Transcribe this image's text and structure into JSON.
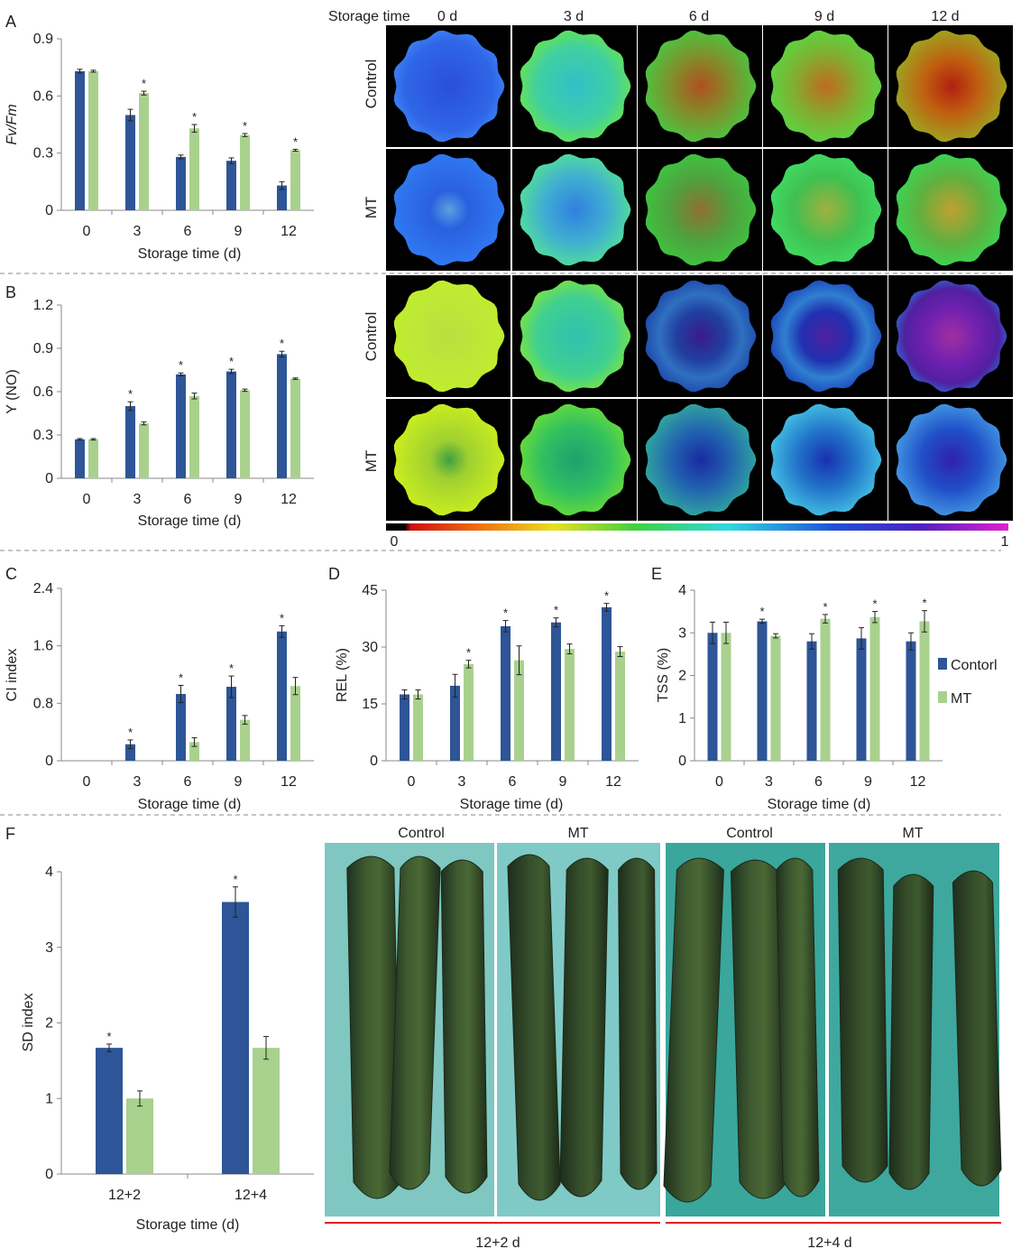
{
  "colors": {
    "control": "#2e5597",
    "mt": "#a9d18e",
    "axis": "#888888",
    "dash": "#888888",
    "red_line": "#e02020"
  },
  "legend": {
    "control": "Contorl",
    "mt": "MT"
  },
  "panels": {
    "A": {
      "label": "A",
      "ylabel": "Fv/Fm",
      "xlabel": "Storage time (d)"
    },
    "B": {
      "label": "B",
      "ylabel": "Y (NO)",
      "xlabel": "Storage time (d)"
    },
    "C": {
      "label": "C",
      "ylabel": "CI index",
      "xlabel": "Storage time (d)"
    },
    "D": {
      "label": "D",
      "ylabel": "REL (%)",
      "xlabel": "Storage time (d)"
    },
    "E": {
      "label": "E",
      "ylabel": "TSS (%)",
      "xlabel": "Storage time (d)"
    },
    "F": {
      "label": "F",
      "ylabel": "SD index",
      "xlabel": "Storage time (d)"
    }
  },
  "image_grid": {
    "header_label": "Storage time",
    "columns": [
      "0 d",
      "3 d",
      "6 d",
      "9 d",
      "12 d"
    ],
    "rows": [
      "Control",
      "MT",
      "Control",
      "MT"
    ],
    "colorbar": {
      "min": "0",
      "max": "1"
    }
  },
  "photos": {
    "groups": [
      {
        "caption": "12+2 d",
        "labels": [
          "Control",
          "MT"
        ]
      },
      {
        "caption": "12+4 d",
        "labels": [
          "Control",
          "MT"
        ]
      }
    ]
  },
  "chart_data": [
    {
      "panel": "A",
      "type": "bar",
      "categories": [
        "0",
        "3",
        "6",
        "9",
        "12"
      ],
      "ylim": [
        0,
        0.9
      ],
      "yticks": [
        "0",
        "0.3",
        "0.6",
        "0.9"
      ],
      "series": [
        {
          "name": "Contorl",
          "values": [
            0.73,
            0.5,
            0.28,
            0.26,
            0.13
          ],
          "errors": [
            0.01,
            0.03,
            0.01,
            0.015,
            0.02
          ]
        },
        {
          "name": "MT",
          "values": [
            0.73,
            0.615,
            0.43,
            0.395,
            0.315
          ],
          "errors": [
            0.005,
            0.01,
            0.02,
            0.008,
            0.005
          ]
        }
      ],
      "significance": [
        "",
        "*",
        "*",
        "*",
        "*"
      ],
      "sig_series": 1
    },
    {
      "panel": "B",
      "type": "bar",
      "categories": [
        "0",
        "3",
        "6",
        "9",
        "12"
      ],
      "ylim": [
        0,
        1.2
      ],
      "yticks": [
        "0",
        "0.3",
        "0.6",
        "0.9",
        "1.2"
      ],
      "series": [
        {
          "name": "Contorl",
          "values": [
            0.27,
            0.5,
            0.72,
            0.74,
            0.86
          ],
          "errors": [
            0.005,
            0.03,
            0.01,
            0.015,
            0.02
          ]
        },
        {
          "name": "MT",
          "values": [
            0.27,
            0.38,
            0.57,
            0.61,
            0.69
          ],
          "errors": [
            0.005,
            0.01,
            0.02,
            0.008,
            0.005
          ]
        }
      ],
      "significance": [
        "",
        "*",
        "*",
        "*",
        "*"
      ],
      "sig_series": 0
    },
    {
      "panel": "C",
      "type": "bar",
      "categories": [
        "0",
        "3",
        "6",
        "9",
        "12"
      ],
      "ylim": [
        0,
        2.4
      ],
      "yticks": [
        "0",
        "0.8",
        "1.6",
        "2.4"
      ],
      "series": [
        {
          "name": "Contorl",
          "values": [
            0,
            0.23,
            0.93,
            1.03,
            1.8
          ],
          "errors": [
            0,
            0.06,
            0.12,
            0.15,
            0.08
          ]
        },
        {
          "name": "MT",
          "values": [
            0,
            0,
            0.26,
            0.57,
            1.04
          ],
          "errors": [
            0,
            0,
            0.06,
            0.06,
            0.12
          ]
        }
      ],
      "significance": [
        "",
        "*",
        "*",
        "*",
        "*"
      ],
      "sig_series": 0
    },
    {
      "panel": "D",
      "type": "bar",
      "categories": [
        "0",
        "3",
        "6",
        "9",
        "12"
      ],
      "ylim": [
        0,
        45
      ],
      "yticks": [
        "0",
        "15",
        "30",
        "45"
      ],
      "series": [
        {
          "name": "Contorl",
          "values": [
            17.5,
            19.8,
            35.5,
            36.5,
            40.5
          ],
          "errors": [
            1.2,
            3.0,
            1.5,
            1.2,
            1.0
          ]
        },
        {
          "name": "MT",
          "values": [
            17.5,
            25.5,
            26.5,
            29.5,
            28.8
          ],
          "errors": [
            1.2,
            1.0,
            3.8,
            1.3,
            1.3
          ]
        }
      ],
      "significance": [
        "",
        "*",
        "*",
        "*",
        "*"
      ],
      "sig_pos": [
        null,
        1,
        0,
        0,
        0
      ]
    },
    {
      "panel": "E",
      "type": "bar",
      "categories": [
        "0",
        "3",
        "6",
        "9",
        "12"
      ],
      "ylim": [
        0,
        4
      ],
      "yticks": [
        "0",
        "1",
        "2",
        "3",
        "4"
      ],
      "series": [
        {
          "name": "Contorl",
          "values": [
            3.0,
            3.27,
            2.8,
            2.87,
            2.8
          ],
          "errors": [
            0.25,
            0.05,
            0.18,
            0.25,
            0.2
          ]
        },
        {
          "name": "MT",
          "values": [
            3.0,
            2.93,
            3.33,
            3.37,
            3.27
          ],
          "errors": [
            0.25,
            0.05,
            0.1,
            0.13,
            0.25
          ]
        }
      ],
      "significance": [
        "",
        "*",
        "*",
        "*",
        "*"
      ],
      "sig_pos": [
        null,
        0,
        1,
        1,
        1
      ]
    },
    {
      "panel": "F",
      "type": "bar",
      "categories": [
        "12+2",
        "12+4"
      ],
      "ylim": [
        0,
        4
      ],
      "yticks": [
        "0",
        "1",
        "2",
        "3",
        "4"
      ],
      "series": [
        {
          "name": "Contorl",
          "values": [
            1.67,
            3.6
          ],
          "errors": [
            0.05,
            0.2
          ]
        },
        {
          "name": "MT",
          "values": [
            1.0,
            1.67
          ],
          "errors": [
            0.1,
            0.15
          ]
        }
      ],
      "significance": [
        "*",
        "*"
      ],
      "sig_series": 0
    }
  ]
}
